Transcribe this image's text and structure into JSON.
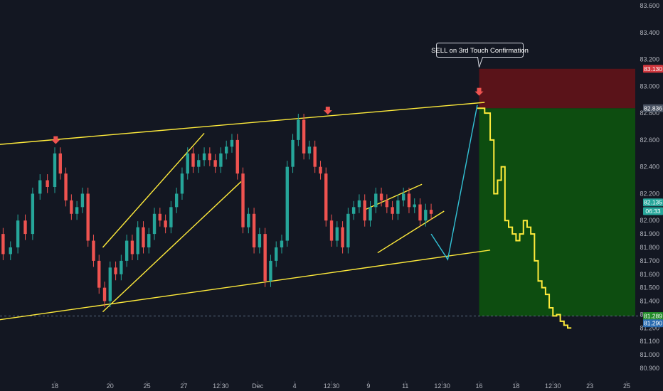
{
  "chart_data": {
    "type": "line",
    "title": "",
    "xlabel": "",
    "ylabel": "",
    "ylim": [
      80.85,
      83.65
    ],
    "y_ticks": [
      83.6,
      83.4,
      83.2,
      83.0,
      82.8,
      82.6,
      82.4,
      82.2,
      82.0,
      81.9,
      81.8,
      81.7,
      81.6,
      81.5,
      81.4,
      81.3,
      81.2,
      81.1,
      81.0,
      80.9
    ],
    "y_tick_labels": [
      "83.600",
      "83.400",
      "83.200",
      "83.000",
      "82.800",
      "82.600",
      "82.400",
      "82.200",
      "82.000",
      "81.900",
      "81.800",
      "81.700",
      "81.600",
      "81.500",
      "81.400",
      "81.300",
      "81.200",
      "81.100",
      "81.000",
      "80.900"
    ],
    "x_ticks": [
      {
        "label": "12:30",
        "x": -4.0
      },
      {
        "label": "18",
        "x": 0.0
      },
      {
        "label": "20",
        "x": 3.0
      },
      {
        "label": "25",
        "x": 5.0
      },
      {
        "label": "27",
        "x": 7.0
      },
      {
        "label": "12:30",
        "x": 9.0
      },
      {
        "label": "Dec",
        "x": 11.0
      },
      {
        "label": "4",
        "x": 13.0
      },
      {
        "label": "12:30",
        "x": 15.0
      },
      {
        "label": "9",
        "x": 17.0
      },
      {
        "label": "11",
        "x": 19.0
      },
      {
        "label": "12:30",
        "x": 21.0
      },
      {
        "label": "16",
        "x": 23.0
      },
      {
        "label": "18",
        "x": 25.0
      },
      {
        "label": "12:30",
        "x": 27.0
      },
      {
        "label": "23",
        "x": 29.0
      },
      {
        "label": "25",
        "x": 31.0
      }
    ],
    "price_series": {
      "name": "",
      "color": "#26a69a",
      "down_color": "#ef5350",
      "x": [
        -5.2,
        -4.8,
        -4.4,
        -4.0,
        -3.6,
        -3.2,
        -2.8,
        -2.4,
        -2.0,
        -1.6,
        -1.2,
        -0.8,
        -0.4,
        0.0,
        0.3,
        0.6,
        0.9,
        1.2,
        1.5,
        1.8,
        2.1,
        2.4,
        2.7,
        3.0,
        3.3,
        3.6,
        3.9,
        4.2,
        4.5,
        4.8,
        5.1,
        5.4,
        5.7,
        6.0,
        6.3,
        6.6,
        6.9,
        7.2,
        7.5,
        7.8,
        8.1,
        8.4,
        8.7,
        9.0,
        9.3,
        9.6,
        9.9,
        10.2,
        10.5,
        10.8,
        11.1,
        11.4,
        11.7,
        12.0,
        12.3,
        12.6,
        12.9,
        13.2,
        13.5,
        13.8,
        14.1,
        14.4,
        14.7,
        15.0,
        15.3,
        15.6,
        15.9,
        16.2,
        16.5,
        16.8,
        17.1,
        17.4,
        17.7,
        18.0,
        18.3,
        18.6,
        18.9,
        19.2,
        19.5,
        19.8,
        20.1,
        20.4
      ],
      "y": [
        82.0,
        82.15,
        82.05,
        81.95,
        82.1,
        81.9,
        81.75,
        81.8,
        82.0,
        81.9,
        82.2,
        82.3,
        82.25,
        82.5,
        82.35,
        82.15,
        82.05,
        82.1,
        82.2,
        81.85,
        81.7,
        81.5,
        81.4,
        81.65,
        81.6,
        81.7,
        81.85,
        81.75,
        81.95,
        81.8,
        81.9,
        82.05,
        82.0,
        81.95,
        82.1,
        82.2,
        82.35,
        82.5,
        82.4,
        82.45,
        82.5,
        82.45,
        82.4,
        82.5,
        82.55,
        82.6,
        82.35,
        81.95,
        82.05,
        81.8,
        81.9,
        81.55,
        81.7,
        81.8,
        81.85,
        82.4,
        82.6,
        82.75,
        82.5,
        82.55,
        82.4,
        82.35,
        82.0,
        81.85,
        81.95,
        81.8,
        82.05,
        82.1,
        82.15,
        82.0,
        82.1,
        82.2,
        82.15,
        82.1,
        82.05,
        82.15,
        82.2,
        82.1,
        82.12,
        82.0,
        82.08,
        82.05
      ]
    },
    "projection": {
      "name": "",
      "color": "#33c3d6",
      "x": [
        20.4,
        21.3,
        22.9
      ],
      "y": [
        81.9,
        81.71,
        82.86
      ]
    },
    "forecast_series": {
      "name": "",
      "color": "#ffeb3b",
      "x": [
        22.9,
        23.3,
        23.6,
        23.8,
        24.0,
        24.2,
        24.4,
        24.6,
        24.8,
        25.0,
        25.2,
        25.4,
        25.6,
        25.8,
        26.0,
        26.2,
        26.4,
        26.6,
        26.8,
        27.0,
        27.2,
        27.4,
        27.6,
        27.8,
        28.0
      ],
      "y": [
        82.836,
        82.8,
        82.6,
        82.2,
        82.3,
        82.4,
        82.0,
        81.95,
        81.9,
        81.85,
        81.9,
        82.0,
        81.95,
        81.9,
        81.7,
        81.55,
        81.5,
        81.45,
        81.35,
        81.29,
        81.3,
        81.25,
        81.22,
        81.2,
        81.2
      ]
    },
    "trendlines": [
      {
        "color": "#ffeb3b",
        "x": [
          -4.4,
          23.3
        ],
        "y": [
          82.55,
          82.88
        ]
      },
      {
        "color": "#ffeb3b",
        "x": [
          -4.6,
          23.6
        ],
        "y": [
          81.23,
          81.78
        ]
      },
      {
        "color": "#ffeb3b",
        "x": [
          2.6,
          8.1
        ],
        "y": [
          81.8,
          82.65
        ]
      },
      {
        "color": "#ffeb3b",
        "x": [
          2.6,
          10.1
        ],
        "y": [
          81.32,
          82.29
        ]
      },
      {
        "color": "#ffeb3b",
        "x": [
          16.8,
          19.9
        ],
        "y": [
          82.08,
          82.27
        ]
      },
      {
        "color": "#ffeb3b",
        "x": [
          17.5,
          21.1
        ],
        "y": [
          81.76,
          82.07
        ]
      }
    ],
    "reference_lines": [
      {
        "y": 81.289,
        "style": "dashed",
        "color": "#5b6b80"
      }
    ],
    "zones": [
      {
        "kind": "stop",
        "color": "#5a1319",
        "x": [
          23.0,
          34.2
        ],
        "y": [
          82.836,
          83.13
        ]
      },
      {
        "kind": "target",
        "color": "#0d4d10",
        "x": [
          23.0,
          34.2
        ],
        "y": [
          81.289,
          82.836
        ]
      }
    ],
    "markers": [
      {
        "symbol": "down-arrow",
        "color": "#ef5350",
        "x": 0.05,
        "y": 82.58
      },
      {
        "symbol": "down-arrow",
        "color": "#ef5350",
        "x": 14.8,
        "y": 82.8
      },
      {
        "symbol": "down-arrow",
        "color": "#ef5350",
        "x": 23.0,
        "y": 82.94
      }
    ],
    "price_badges": [
      {
        "label": "83.130",
        "y": 83.13,
        "color": "#d1383f"
      },
      {
        "label": "82.836",
        "y": 82.836,
        "color": "#4a5363"
      },
      {
        "label": "82.135",
        "y": 82.135,
        "color": "#26a69a"
      },
      {
        "label": "06:33",
        "y": 82.07,
        "color": "#26a69a"
      },
      {
        "label": "81.289",
        "y": 81.289,
        "color": "#238b2a"
      },
      {
        "label": "81.290",
        "y": 81.235,
        "color": "#2b6cb0"
      }
    ],
    "annotation": {
      "text": "SELL on 3rd Touch Confirmation",
      "x": 23.0,
      "y": 83.2
    }
  }
}
